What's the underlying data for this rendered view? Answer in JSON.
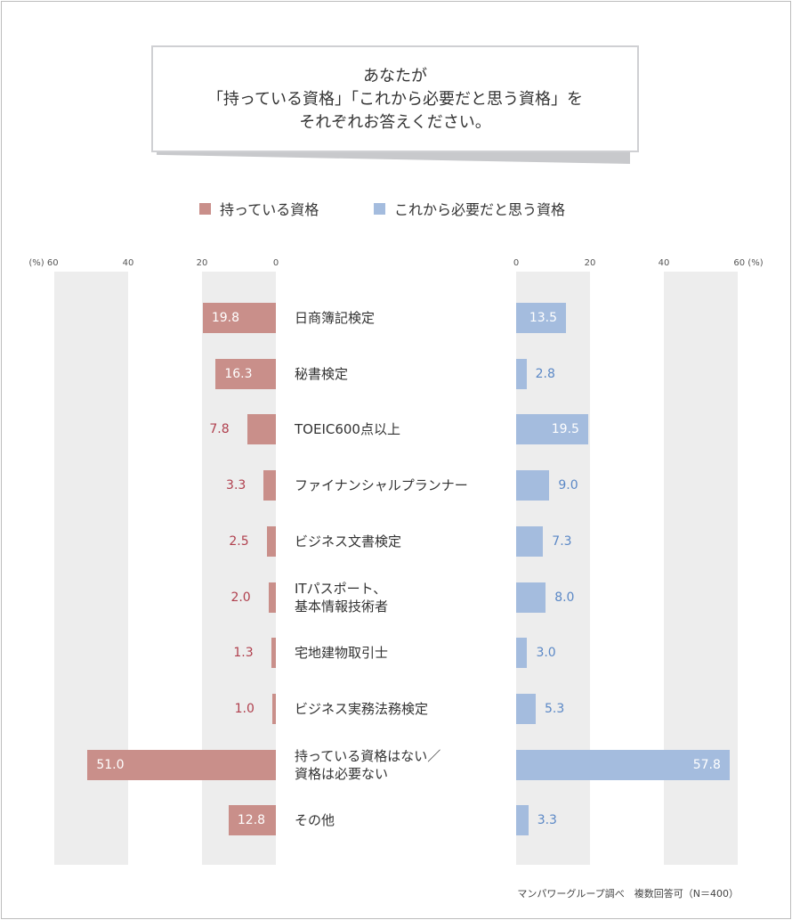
{
  "title_lines": [
    "あなたが",
    "「持っている資格」「これから必要だと思う資格」を",
    "それぞれお答えください。"
  ],
  "footer": "マンパワーグループ調べ　複数回答可（N＝400）",
  "colors": {
    "held": "#c98f8a",
    "needed": "#a4bcde",
    "held_text": "#b0404e",
    "needed_text": "#5b88c6"
  },
  "chart_data": {
    "type": "bar",
    "orientation": "horizontal-butterfly",
    "unit": "%",
    "xlim": [
      0,
      60
    ],
    "ticks": [
      "0",
      "20",
      "40",
      "60"
    ],
    "left_axis_labels": [
      "(%) 60",
      "40",
      "20",
      "0"
    ],
    "right_axis_labels": [
      "0",
      "20",
      "40",
      "60 (%)"
    ],
    "legend_position": "top",
    "categories": [
      "日商簿記検定",
      "秘書検定",
      "TOEIC600点以上",
      "ファイナンシャルプランナー",
      "ビジネス文書検定",
      "ITパスポート、\n基本情報技術者",
      "宅地建物取引士",
      "ビジネス実務法務検定",
      "持っている資格はない／\n資格は必要ない",
      "その他"
    ],
    "series": [
      {
        "name": "持っている資格",
        "values": [
          19.8,
          16.3,
          7.8,
          3.3,
          2.5,
          2.0,
          1.3,
          1.0,
          51.0,
          12.8
        ]
      },
      {
        "name": "これから必要だと思う資格",
        "values": [
          13.5,
          2.8,
          19.5,
          9.0,
          7.3,
          8.0,
          3.0,
          5.3,
          57.8,
          3.3
        ]
      }
    ]
  }
}
